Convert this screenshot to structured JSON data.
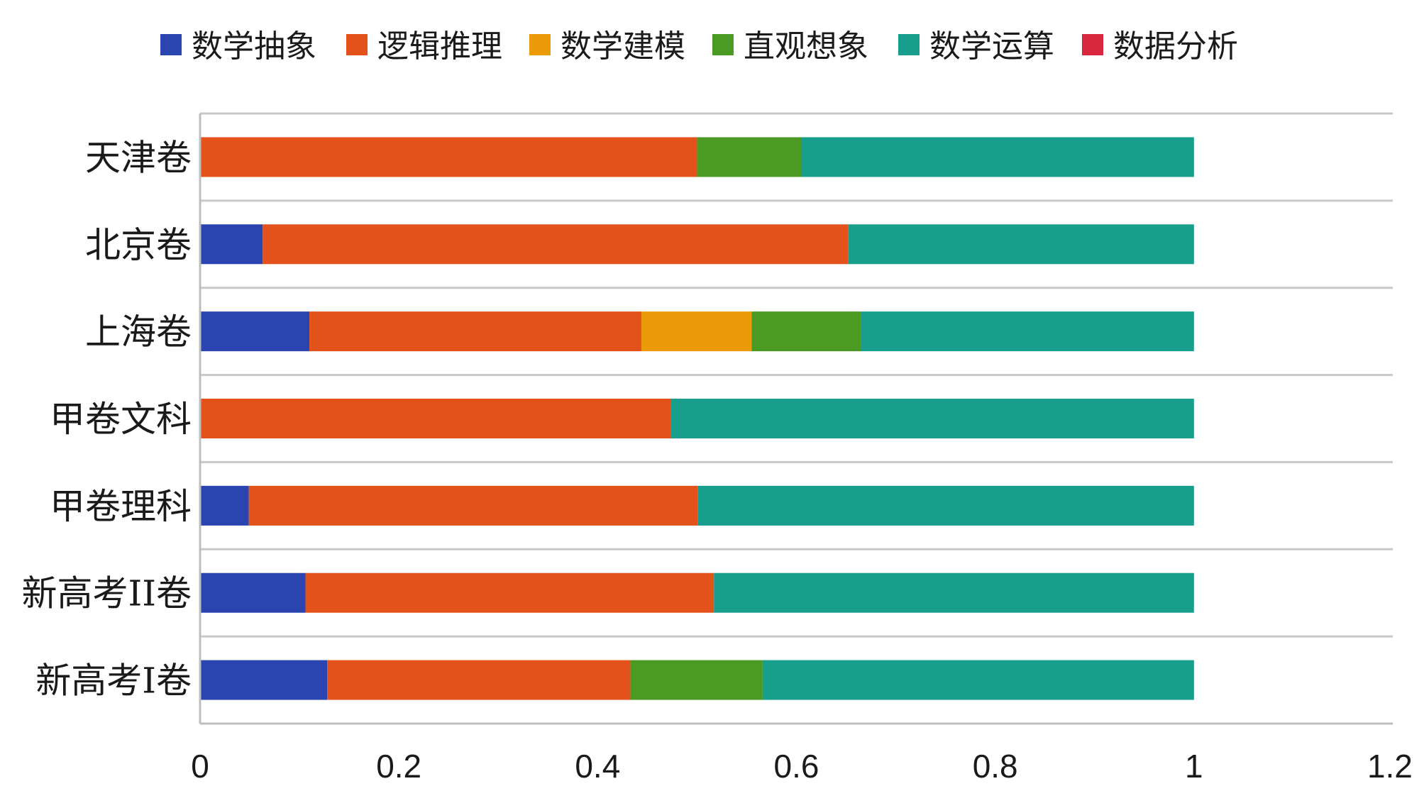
{
  "chart_data": {
    "type": "bar",
    "orientation": "horizontal",
    "stacked": true,
    "categories": [
      "天津卷",
      "北京卷",
      "上海卷",
      "甲卷文科",
      "甲卷理科",
      "新高考II卷",
      "新高考I卷"
    ],
    "series": [
      {
        "name": "数学抽象",
        "color": "#2a44b0",
        "values": [
          0.0,
          0.063,
          0.11,
          0.0,
          0.049,
          0.106,
          0.128
        ]
      },
      {
        "name": "逻辑推理",
        "color": "#e3521a",
        "values": [
          0.5,
          0.589,
          0.334,
          0.474,
          0.452,
          0.411,
          0.305
        ]
      },
      {
        "name": "数学建模",
        "color": "#eb9a08",
        "values": [
          0.0,
          0.0,
          0.111,
          0.0,
          0.0,
          0.0,
          0.0
        ]
      },
      {
        "name": "直观想象",
        "color": "#4a9a24",
        "values": [
          0.105,
          0.0,
          0.11,
          0.0,
          0.0,
          0.0,
          0.133
        ]
      },
      {
        "name": "数学运算",
        "color": "#189e8c",
        "values": [
          0.395,
          0.348,
          0.335,
          0.526,
          0.499,
          0.483,
          0.434
        ]
      },
      {
        "name": "数据分析",
        "color": "#d8263e",
        "values": [
          0,
          0,
          0,
          0,
          0,
          0,
          0
        ]
      }
    ],
    "xlim": [
      0,
      1.2
    ],
    "xticks": [
      "0",
      "0.2",
      "0.4",
      "0.6",
      "0.8",
      "1",
      "1.2"
    ],
    "title": "",
    "xlabel": "",
    "ylabel": "",
    "legend_position": "top",
    "grid": "horizontal lines between categories"
  }
}
